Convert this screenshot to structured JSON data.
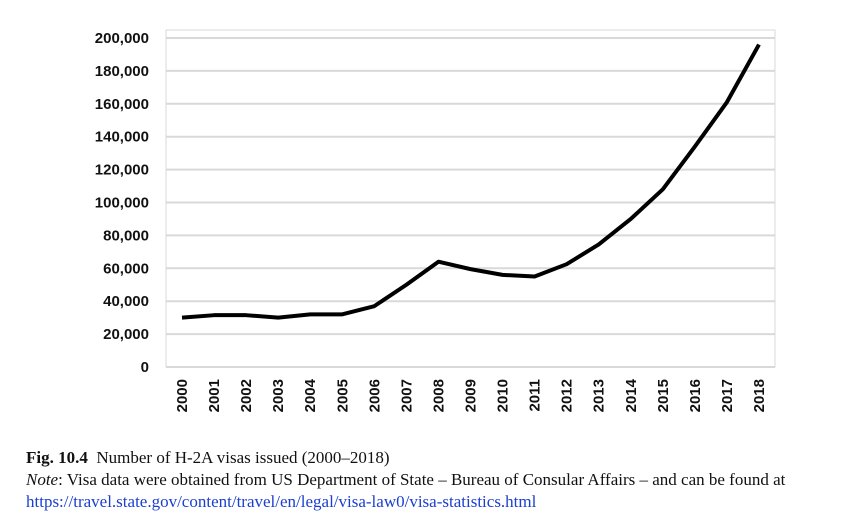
{
  "chart_data": {
    "type": "line",
    "title": "",
    "xlabel": "",
    "ylabel": "",
    "categories": [
      "2000",
      "2001",
      "2002",
      "2003",
      "2004",
      "2005",
      "2006",
      "2007",
      "2008",
      "2009",
      "2010",
      "2011",
      "2012",
      "2013",
      "2014",
      "2015",
      "2016",
      "2017",
      "2018"
    ],
    "values": [
      30000,
      31500,
      31500,
      30000,
      32000,
      32000,
      37000,
      50000,
      64000,
      59500,
      56000,
      55000,
      62500,
      74500,
      90000,
      108000,
      134000,
      161000,
      196000
    ],
    "ylim": [
      0,
      200000
    ],
    "yticks": [
      "0",
      "20,000",
      "40,000",
      "60,000",
      "80,000",
      "100,000",
      "120,000",
      "140,000",
      "160,000",
      "180,000",
      "200,000"
    ],
    "grid": true,
    "line_color": "#000000",
    "grid_color": "#d9d9d9"
  },
  "caption": {
    "fig_label": "Fig. 10.4",
    "title": "Number of H-2A visas issued (2000–2018)",
    "note_label": "Note",
    "note_text": ": Visa data were obtained from US Department of State – Bureau of Consular Affairs – and can be found at ",
    "link": "https://travel.state.gov/content/travel/en/legal/visa-law0/visa-statistics.html"
  }
}
